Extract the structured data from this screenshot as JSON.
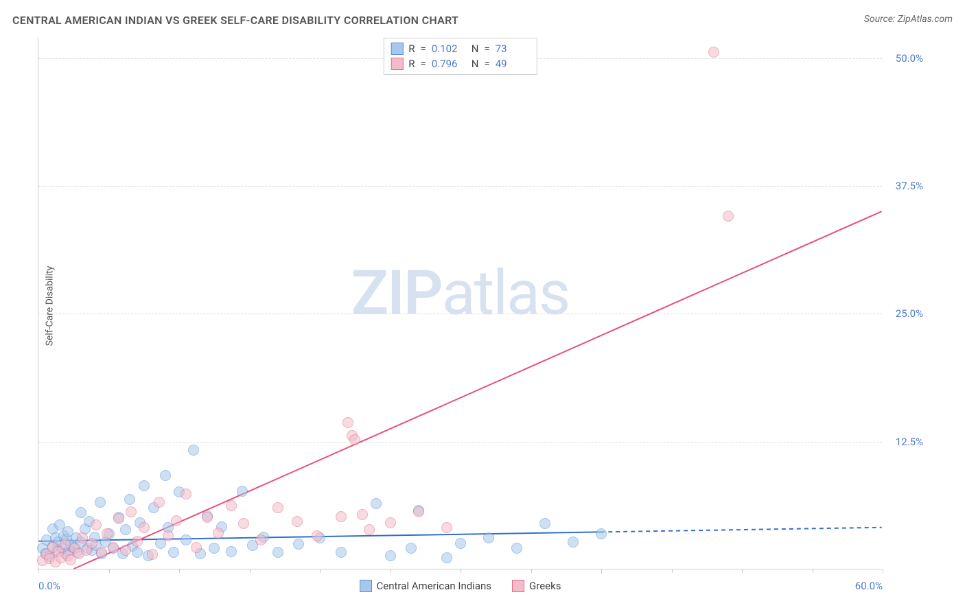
{
  "title": "CENTRAL AMERICAN INDIAN VS GREEK SELF-CARE DISABILITY CORRELATION CHART",
  "source": "Source: ZipAtlas.com",
  "watermark_1": "ZIP",
  "watermark_2": "atlas",
  "chart": {
    "type": "scatter",
    "y_axis_label": "Self-Care Disability",
    "background_color": "#ffffff",
    "grid_color": "#dddddd",
    "axis_color": "#cccccc",
    "tick_label_color": "#4a7bc8",
    "tick_label_fontsize": 15,
    "xlim": [
      0,
      60
    ],
    "ylim": [
      0,
      52
    ],
    "x_ticks": [
      0,
      5,
      10,
      15,
      20,
      25,
      30,
      35,
      40,
      45,
      50,
      55,
      60
    ],
    "x_tick_labels": {
      "0": "0.0%",
      "60": "60.0%"
    },
    "y_ticks": [
      12.5,
      25.0,
      37.5,
      50.0
    ],
    "y_tick_labels": [
      "12.5%",
      "25.0%",
      "37.5%",
      "50.0%"
    ],
    "marker_radius": 8,
    "marker_opacity": 0.55,
    "series": [
      {
        "name": "Central American Indians",
        "color_fill": "#a7c7ec",
        "color_stroke": "#5b92d4",
        "R": "0.102",
        "N": "73",
        "trend": {
          "x1": 0,
          "y1": 2.7,
          "x2": 40,
          "y2": 3.6,
          "ext_x2": 60,
          "ext_y2": 4.05,
          "color": "#2f6fd0",
          "width": 2
        },
        "points": [
          [
            0.3,
            2.0
          ],
          [
            0.5,
            1.5
          ],
          [
            0.6,
            2.8
          ],
          [
            0.8,
            1.2
          ],
          [
            1.0,
            2.2
          ],
          [
            1.0,
            3.9
          ],
          [
            1.2,
            3.0
          ],
          [
            1.3,
            1.8
          ],
          [
            1.4,
            2.6
          ],
          [
            1.5,
            4.3
          ],
          [
            1.7,
            2.0
          ],
          [
            1.8,
            3.2
          ],
          [
            1.9,
            1.5
          ],
          [
            2.0,
            2.9
          ],
          [
            2.1,
            3.6
          ],
          [
            2.2,
            1.8
          ],
          [
            2.3,
            2.4
          ],
          [
            2.5,
            2.1
          ],
          [
            2.7,
            3.0
          ],
          [
            2.8,
            1.6
          ],
          [
            3.0,
            5.5
          ],
          [
            3.0,
            2.6
          ],
          [
            3.3,
            3.9
          ],
          [
            3.5,
            2.0
          ],
          [
            3.6,
            4.6
          ],
          [
            3.8,
            1.8
          ],
          [
            4.0,
            3.1
          ],
          [
            4.1,
            2.3
          ],
          [
            4.4,
            6.5
          ],
          [
            4.5,
            1.5
          ],
          [
            4.8,
            2.6
          ],
          [
            5.0,
            3.4
          ],
          [
            5.3,
            2.0
          ],
          [
            5.7,
            5.0
          ],
          [
            6.0,
            1.5
          ],
          [
            6.2,
            3.8
          ],
          [
            6.5,
            6.8
          ],
          [
            6.7,
            2.2
          ],
          [
            7.0,
            1.6
          ],
          [
            7.2,
            4.5
          ],
          [
            7.5,
            8.1
          ],
          [
            7.8,
            1.3
          ],
          [
            8.2,
            6.0
          ],
          [
            8.7,
            2.5
          ],
          [
            9.0,
            9.1
          ],
          [
            9.2,
            4.0
          ],
          [
            9.6,
            1.6
          ],
          [
            10.0,
            7.5
          ],
          [
            10.5,
            2.8
          ],
          [
            11.0,
            11.6
          ],
          [
            11.5,
            1.5
          ],
          [
            12.0,
            5.2
          ],
          [
            12.5,
            2.0
          ],
          [
            13.0,
            4.1
          ],
          [
            13.7,
            1.7
          ],
          [
            14.5,
            7.6
          ],
          [
            15.2,
            2.3
          ],
          [
            16.0,
            3.1
          ],
          [
            17.0,
            1.6
          ],
          [
            18.5,
            2.4
          ],
          [
            20.0,
            3.0
          ],
          [
            21.5,
            1.6
          ],
          [
            24.0,
            6.4
          ],
          [
            25.0,
            1.3
          ],
          [
            26.5,
            2.0
          ],
          [
            27.0,
            5.7
          ],
          [
            29.0,
            1.1
          ],
          [
            30.0,
            2.5
          ],
          [
            32.0,
            3.0
          ],
          [
            34.0,
            2.0
          ],
          [
            36.0,
            4.4
          ],
          [
            38.0,
            2.6
          ],
          [
            40.0,
            3.4
          ]
        ]
      },
      {
        "name": "Greeks",
        "color_fill": "#f4bcc9",
        "color_stroke": "#e86b8c",
        "R": "0.796",
        "N": "49",
        "trend": {
          "x1": 2.5,
          "y1": 0,
          "x2": 60,
          "y2": 35.0,
          "color": "#e6517b",
          "width": 2
        },
        "points": [
          [
            0.3,
            0.8
          ],
          [
            0.6,
            1.4
          ],
          [
            0.8,
            1.0
          ],
          [
            1.0,
            2.1
          ],
          [
            1.2,
            0.7
          ],
          [
            1.4,
            1.7
          ],
          [
            1.6,
            1.1
          ],
          [
            1.9,
            2.4
          ],
          [
            2.1,
            1.3
          ],
          [
            2.3,
            0.9
          ],
          [
            2.6,
            2.0
          ],
          [
            2.9,
            1.5
          ],
          [
            3.1,
            3.0
          ],
          [
            3.4,
            1.8
          ],
          [
            3.8,
            2.5
          ],
          [
            4.1,
            4.3
          ],
          [
            4.5,
            1.6
          ],
          [
            4.9,
            3.4
          ],
          [
            5.3,
            2.1
          ],
          [
            5.7,
            4.9
          ],
          [
            6.2,
            1.8
          ],
          [
            6.6,
            5.6
          ],
          [
            7.0,
            2.7
          ],
          [
            7.5,
            4.0
          ],
          [
            8.1,
            1.4
          ],
          [
            8.6,
            6.5
          ],
          [
            9.2,
            3.2
          ],
          [
            9.8,
            4.7
          ],
          [
            10.5,
            7.3
          ],
          [
            11.2,
            2.1
          ],
          [
            12.0,
            5.0
          ],
          [
            12.8,
            3.5
          ],
          [
            13.7,
            6.2
          ],
          [
            14.6,
            4.4
          ],
          [
            15.8,
            2.8
          ],
          [
            17.0,
            6.0
          ],
          [
            18.4,
            4.6
          ],
          [
            19.8,
            3.2
          ],
          [
            21.5,
            5.1
          ],
          [
            22.0,
            14.3
          ],
          [
            22.3,
            13.0
          ],
          [
            22.5,
            12.6
          ],
          [
            23.0,
            5.3
          ],
          [
            23.5,
            3.8
          ],
          [
            25.0,
            4.5
          ],
          [
            27.0,
            5.6
          ],
          [
            29.0,
            4.0
          ],
          [
            48.0,
            50.5
          ],
          [
            49.0,
            34.5
          ]
        ]
      }
    ],
    "legend_stats": {
      "r_label": "R",
      "n_label": "N",
      "eq": "="
    }
  }
}
